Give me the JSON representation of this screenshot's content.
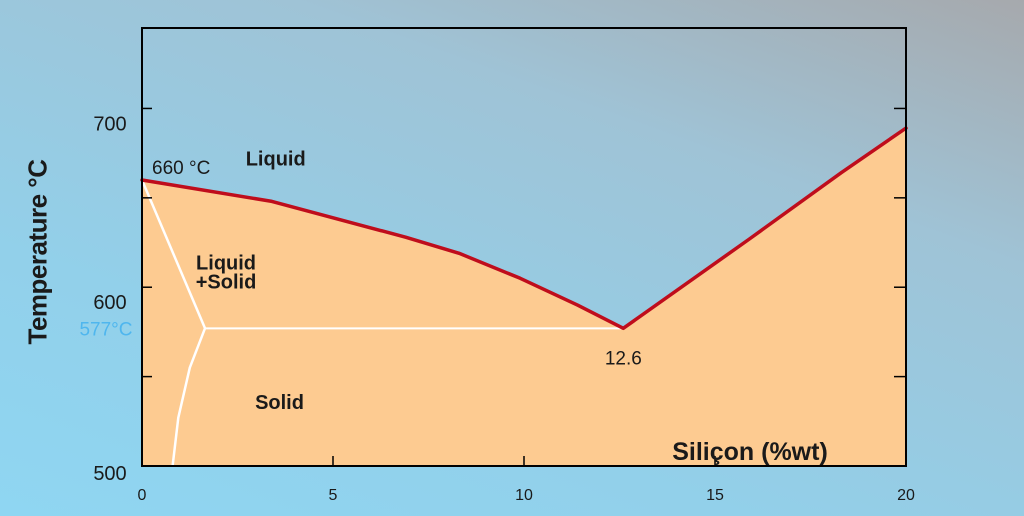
{
  "chart_data": {
    "type": "phase-diagram",
    "title": "",
    "xlabel": "Siliçon (%wt)",
    "ylabel": "Temperature °C",
    "xlim": [
      0,
      20
    ],
    "ylim": [
      500,
      745
    ],
    "x_ticks": [
      0,
      5,
      10,
      15,
      20
    ],
    "y_tick_labels": [
      {
        "value": 500,
        "text": "500"
      },
      {
        "value": 600,
        "text": "600"
      },
      {
        "value": 700,
        "text": "700"
      }
    ],
    "eutectic_temperature": 577,
    "eutectic_temperature_label": "577°C",
    "eutectic_composition": 12.6,
    "eutectic_composition_label": "12.6",
    "aluminum_melting_point": 660,
    "aluminum_melting_point_label": "660 °C",
    "liquidus": [
      {
        "x": 0,
        "y": 660
      },
      {
        "x": 3.4,
        "y": 648
      },
      {
        "x": 6.9,
        "y": 628
      },
      {
        "x": 8.3,
        "y": 619
      },
      {
        "x": 9.9,
        "y": 605
      },
      {
        "x": 11.4,
        "y": 590
      },
      {
        "x": 12.6,
        "y": 577
      },
      {
        "x": 15.9,
        "y": 627
      },
      {
        "x": 18.3,
        "y": 664
      },
      {
        "x": 20,
        "y": 689
      }
    ],
    "solvus": [
      {
        "x": 0,
        "y": 660
      },
      {
        "x": 1.65,
        "y": 577
      },
      {
        "x": 1.25,
        "y": 555
      },
      {
        "x": 0.95,
        "y": 527
      },
      {
        "x": 0.8,
        "y": 500
      }
    ],
    "regions": [
      {
        "label": "Liquid",
        "x": 3.5,
        "y": 668
      },
      {
        "label": "Liquid\n+Solid",
        "x": 2.2,
        "y": 610
      },
      {
        "label": "Solid",
        "x": 3.6,
        "y": 532
      }
    ],
    "colors": {
      "background_top": "#a6a9ad",
      "background_bottom": "#8fd6f2",
      "liquid_region": "transparent",
      "solid_fill": "#fdcb91",
      "liquidus_line": "#bf0d1c",
      "solvus_line": "#ffffff",
      "eutectic_label": "#4fb6ee",
      "axis": "#000000",
      "text": "#1a1a1a"
    }
  }
}
